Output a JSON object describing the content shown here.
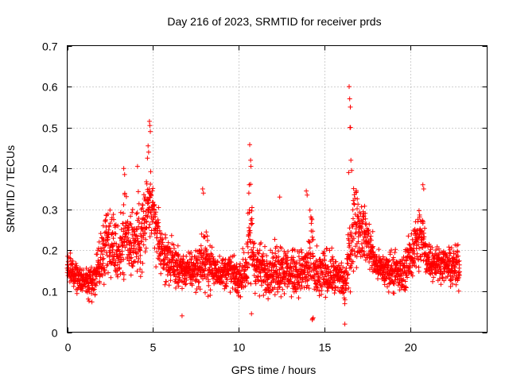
{
  "chart_data": {
    "type": "scatter",
    "title": "Day 216 of 2023, SRMTID for receiver prds",
    "xlabel": "GPS time / hours",
    "ylabel": "SRMTID / TECUs",
    "xlim": [
      0,
      24.5
    ],
    "ylim": [
      0,
      0.7
    ],
    "xticks": [
      0,
      5,
      10,
      15,
      20
    ],
    "yticks": [
      0,
      0.1,
      0.2,
      0.3,
      0.4,
      0.5,
      0.6,
      0.7
    ],
    "xtick_labels": [
      "0",
      "5",
      "10",
      "15",
      "20"
    ],
    "ytick_labels": [
      "0",
      "0.1",
      "0.2",
      "0.3",
      "0.4",
      "0.5",
      "0.6",
      "0.7"
    ],
    "grid": true,
    "marker": "+",
    "color": "#ff0000",
    "x_span": [
      0,
      22.9
    ],
    "sample_interval_hours": 0.0083,
    "envelope": {
      "hours": [
        0,
        0.5,
        1,
        1.5,
        2,
        2.3,
        3,
        3.3,
        3.6,
        4,
        4.5,
        4.8,
        5,
        5.3,
        5.5,
        6,
        6.5,
        7,
        7.5,
        8,
        8.5,
        9,
        9.5,
        10,
        10.5,
        10.7,
        11,
        11.5,
        12,
        12.5,
        13,
        13.5,
        14,
        14.3,
        14.5,
        15,
        15.5,
        16,
        16.2,
        16.5,
        16.8,
        17,
        17.3,
        17.6,
        18,
        18.5,
        19,
        19.5,
        20,
        20.3,
        20.7,
        21,
        21.5,
        22,
        22.5,
        22.9
      ],
      "low": [
        0.12,
        0.09,
        0.08,
        0.07,
        0.1,
        0.14,
        0.1,
        0.11,
        0.12,
        0.1,
        0.13,
        0.2,
        0.18,
        0.14,
        0.12,
        0.11,
        0.1,
        0.1,
        0.09,
        0.09,
        0.09,
        0.1,
        0.09,
        0.08,
        0.07,
        0.07,
        0.08,
        0.08,
        0.08,
        0.08,
        0.08,
        0.08,
        0.07,
        0.04,
        0.05,
        0.07,
        0.08,
        0.07,
        0.05,
        0.1,
        0.14,
        0.17,
        0.16,
        0.14,
        0.12,
        0.1,
        0.09,
        0.08,
        0.11,
        0.13,
        0.12,
        0.12,
        0.12,
        0.12,
        0.1,
        0.09
      ],
      "high": [
        0.2,
        0.18,
        0.17,
        0.19,
        0.26,
        0.34,
        0.28,
        0.37,
        0.33,
        0.34,
        0.38,
        0.44,
        0.37,
        0.32,
        0.26,
        0.24,
        0.21,
        0.2,
        0.22,
        0.26,
        0.22,
        0.19,
        0.21,
        0.17,
        0.26,
        0.41,
        0.24,
        0.22,
        0.22,
        0.24,
        0.21,
        0.21,
        0.24,
        0.33,
        0.21,
        0.22,
        0.2,
        0.19,
        0.17,
        0.3,
        0.43,
        0.34,
        0.33,
        0.29,
        0.21,
        0.2,
        0.22,
        0.19,
        0.25,
        0.3,
        0.34,
        0.24,
        0.22,
        0.21,
        0.22,
        0.22
      ]
    },
    "spikes": [
      {
        "x": 4.8,
        "y": 0.515
      },
      {
        "x": 4.82,
        "y": 0.505
      },
      {
        "x": 4.85,
        "y": 0.49
      },
      {
        "x": 4.72,
        "y": 0.455
      },
      {
        "x": 4.75,
        "y": 0.44
      },
      {
        "x": 4.68,
        "y": 0.425
      },
      {
        "x": 3.3,
        "y": 0.4
      },
      {
        "x": 3.35,
        "y": 0.385
      },
      {
        "x": 4.1,
        "y": 0.405
      },
      {
        "x": 10.65,
        "y": 0.458
      },
      {
        "x": 10.7,
        "y": 0.42
      },
      {
        "x": 10.72,
        "y": 0.405
      },
      {
        "x": 10.62,
        "y": 0.36
      },
      {
        "x": 10.6,
        "y": 0.34
      },
      {
        "x": 16.45,
        "y": 0.6
      },
      {
        "x": 16.48,
        "y": 0.57
      },
      {
        "x": 16.52,
        "y": 0.55
      },
      {
        "x": 16.5,
        "y": 0.5
      },
      {
        "x": 16.53,
        "y": 0.5
      },
      {
        "x": 16.55,
        "y": 0.42
      },
      {
        "x": 16.6,
        "y": 0.395
      },
      {
        "x": 16.42,
        "y": 0.39
      },
      {
        "x": 7.9,
        "y": 0.35
      },
      {
        "x": 7.95,
        "y": 0.34
      },
      {
        "x": 12.4,
        "y": 0.33
      },
      {
        "x": 13.95,
        "y": 0.345
      },
      {
        "x": 14.0,
        "y": 0.335
      },
      {
        "x": 20.75,
        "y": 0.36
      },
      {
        "x": 20.8,
        "y": 0.35
      },
      {
        "x": 6.7,
        "y": 0.04
      },
      {
        "x": 10.75,
        "y": 0.045
      },
      {
        "x": 14.3,
        "y": 0.03
      },
      {
        "x": 14.35,
        "y": 0.035
      },
      {
        "x": 16.2,
        "y": 0.02
      }
    ]
  }
}
